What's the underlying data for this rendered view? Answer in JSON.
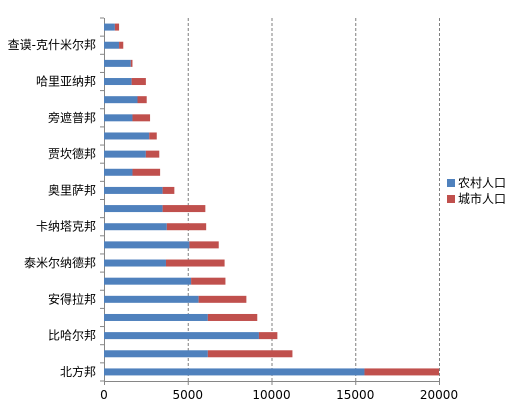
{
  "chart_data": {
    "type": "bar",
    "orientation": "horizontal",
    "stacked": true,
    "categories": [
      "北方邦",
      "",
      "比哈尔邦",
      "",
      "安得拉邦",
      "",
      "泰米尔纳德邦",
      "",
      "卡纳塔克邦",
      "",
      "奥里萨邦",
      "",
      "贾坎德邦",
      "",
      "旁遮普邦",
      "",
      "哈里亚纳邦",
      "",
      "查谟-克什米尔邦",
      ""
    ],
    "series": [
      {
        "name": "农村人口",
        "color": "#4F81BD",
        "values": [
          15550,
          6200,
          9250,
          6200,
          5650,
          5200,
          3700,
          5100,
          3750,
          3500,
          3500,
          1700,
          2500,
          2700,
          1700,
          2000,
          1650,
          1600,
          900,
          650
        ]
      },
      {
        "name": "城市人口",
        "color": "#C0504D",
        "values": [
          4450,
          5050,
          1100,
          2950,
          2850,
          2050,
          3500,
          1750,
          2350,
          2550,
          700,
          1650,
          800,
          450,
          1050,
          550,
          850,
          100,
          250,
          250
        ]
      }
    ],
    "xlim": [
      0,
      20000
    ],
    "xticks": [
      "0",
      "5000",
      "10000",
      "15000",
      "20000"
    ],
    "grid": "vertical-dashed",
    "legend_position": "right"
  }
}
